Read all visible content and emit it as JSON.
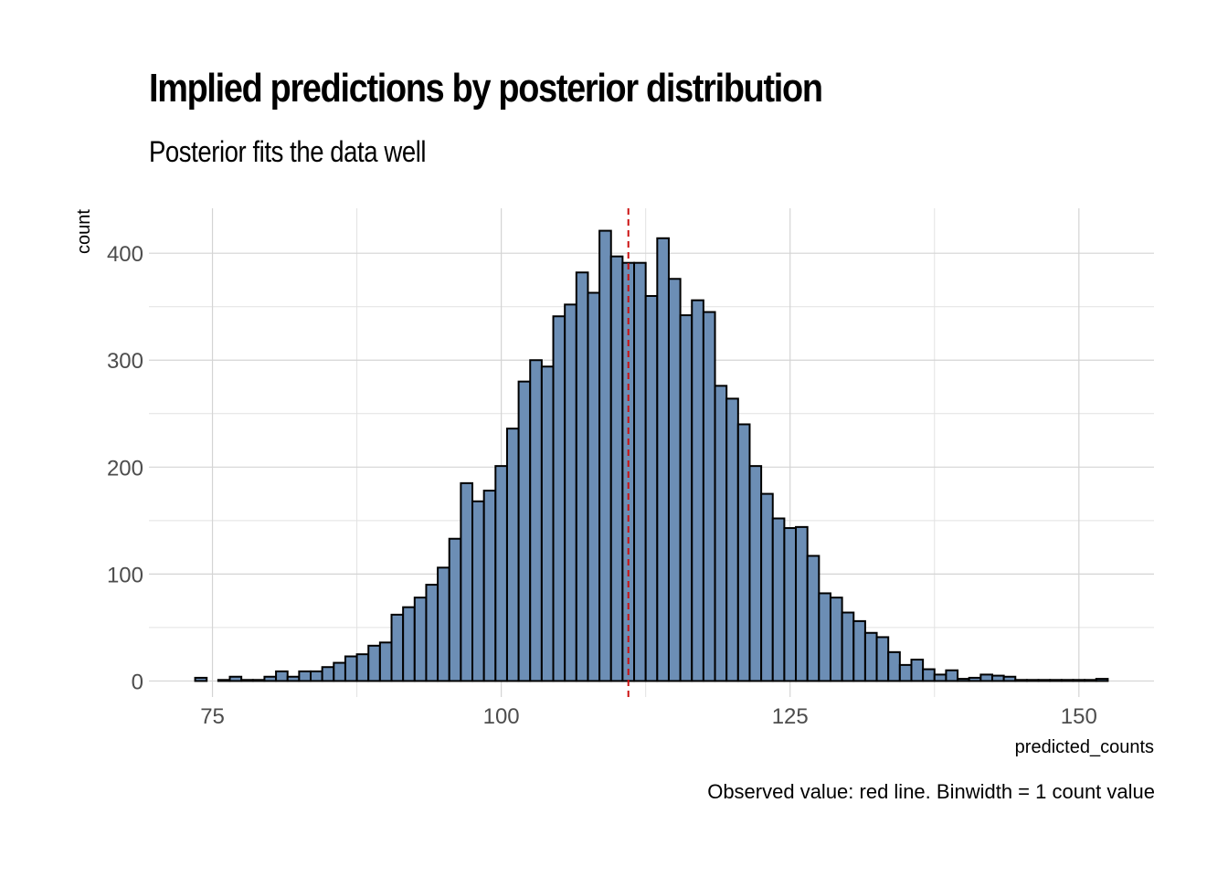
{
  "chart_data": {
    "type": "bar",
    "title": "Implied predictions by posterior distribution",
    "subtitle": "Posterior fits the data well",
    "caption": "Observed value: red line. Binwidth = 1 count value",
    "xlabel": "predicted_counts",
    "ylabel": "count",
    "xlim": [
      69.5,
      156.5
    ],
    "ylim": [
      -15,
      442
    ],
    "x_ticks": [
      75,
      100,
      125,
      150
    ],
    "y_ticks": [
      0,
      100,
      200,
      300,
      400
    ],
    "binwidth": 1,
    "observed_value": 111,
    "grid": true,
    "bar_fill": "#6c8eb5",
    "bar_outline": "#000000",
    "observed_line_color": "#cc1111",
    "x": [
      74,
      75,
      76,
      77,
      78,
      79,
      80,
      81,
      82,
      83,
      84,
      85,
      86,
      87,
      88,
      89,
      90,
      91,
      92,
      93,
      94,
      95,
      96,
      97,
      98,
      99,
      100,
      101,
      102,
      103,
      104,
      105,
      106,
      107,
      108,
      109,
      110,
      111,
      112,
      113,
      114,
      115,
      116,
      117,
      118,
      119,
      120,
      121,
      122,
      123,
      124,
      125,
      126,
      127,
      128,
      129,
      130,
      131,
      132,
      133,
      134,
      135,
      136,
      137,
      138,
      139,
      140,
      141,
      142,
      143,
      144,
      145,
      146,
      147,
      148,
      149,
      150,
      151,
      152
    ],
    "values": [
      3,
      0,
      1,
      4,
      1,
      1,
      4,
      9,
      4,
      9,
      9,
      13,
      17,
      23,
      25,
      33,
      36,
      62,
      69,
      78,
      90,
      106,
      133,
      185,
      168,
      178,
      201,
      236,
      280,
      300,
      294,
      341,
      352,
      382,
      363,
      421,
      397,
      391,
      391,
      360,
      414,
      376,
      342,
      356,
      345,
      276,
      264,
      240,
      201,
      175,
      152,
      143,
      144,
      117,
      82,
      78,
      64,
      56,
      45,
      41,
      27,
      15,
      20,
      11,
      6,
      10,
      2,
      3,
      6,
      5,
      4,
      1,
      1,
      1,
      1,
      1,
      1,
      1,
      2
    ]
  }
}
